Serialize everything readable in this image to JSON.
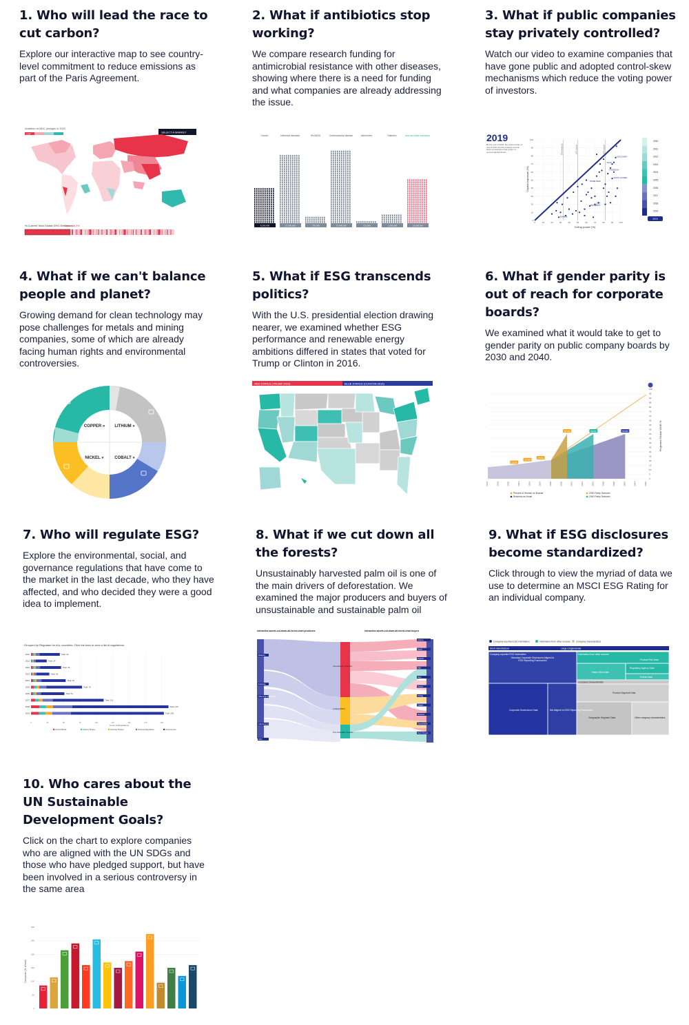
{
  "cards": [
    {
      "title": "1. Who will lead the race to cut carbon?",
      "text": "Explore our interactive map to see country-level commitment to reduce emissions as part of the Paris Agreement."
    },
    {
      "title": "2. What if antibiotics stop working?",
      "text": "We compare research funding for antimicrobial resistance with other diseases, showing where there is a need for funding and what companies are already addressing the issue."
    },
    {
      "title": "3. What if public companies stay privately controlled?",
      "text": "Watch our video to examine companies that have gone public and adopted control-skew mechanisms which reduce the voting power of investors."
    },
    {
      "title": "4. What if we can't balance people and planet?",
      "text": "Growing demand for clean technology may pose challenges for metals and mining companies, some of which are already facing human rights and environmental controversies."
    },
    {
      "title": "5. What if ESG transcends politics?",
      "text": "With the U.S. presidential election drawing nearer, we examined whether ESG performance and renewable energy ambitions differed in states that voted for Trump or Clinton in 2016."
    },
    {
      "title": "6. What if gender parity is out of reach for corporate boards?",
      "text": "We examined what it would take to get to gender parity on public company boards by 2030 and 2040."
    },
    {
      "title": "7. Who will regulate ESG?",
      "text": "Explore the environmental, social, and governance regulations that have come to the market in the last decade, who they have affected, and who decided they were a good idea to implement."
    },
    {
      "title": "8. What if we cut down all the forests?",
      "text": "Unsustainably harvested palm oil is one of the main drivers of deforestation. We examined the major producers and buyers of unsustainable and sustainable palm oil"
    },
    {
      "title": "9. What if ESG disclosures become standardized?",
      "text": "Click through to view the myriad of data we use to determine an MSCI ESG Rating for an individual company."
    },
    {
      "title": "10. Who cares about the UN Sustainable Development Goals?",
      "text": "Click on the chart to explore companies who are aligned with the UN SDGs and those who have pledged support, but have been involved in a serious controversy in the same area"
    }
  ],
  "thumb1": {
    "header_left": "Ambition of NDC pledges in 2022",
    "button": "SELECT A MARKET",
    "legend_low": "LOW",
    "legend_high": "HIGH",
    "footer": "% Current Total Global GHG Emissions:",
    "footer_value": "China 26.3%"
  },
  "thumb2": {
    "categories": [
      "Cancer",
      "Infectious diseases",
      "HIV/AIDS",
      "Cardiovascular disease",
      "Alzheimers",
      "Diabetes",
      "Anti-microbial resistance"
    ],
    "labels": [
      "8,200,000",
      "17,000,000",
      "770,000",
      "17,900,000",
      "121,000",
      "1,500,000",
      "10,000,000"
    ]
  },
  "thumb3": {
    "year": "2019",
    "caption": "By the end of 2019, the total number of recent IPOs that the tracked control-skew mechanisms had grown to unprecedented levels",
    "xlabel": "Voting power (%)",
    "ylabel": "Capital exposure (%)",
    "years": [
      "2010",
      "2011",
      "2012",
      "2013",
      "2014",
      "2015",
      "2016",
      "2017",
      "2018",
      "2019"
    ],
    "ticks": [
      "0",
      "10",
      "20",
      "30",
      "40",
      "50",
      "60",
      "70",
      "80",
      "90",
      "100"
    ],
    "ref_lines": [
      "10% threshold",
      "25% control",
      "50% control"
    ],
    "points": [
      "FACEBOOK",
      "BUMBLE",
      "RALPH LAUREN",
      "SNAP",
      "DISCOVERY",
      "PINTEREST",
      "LYFT",
      "TRADE DESK"
    ]
  },
  "thumb4": {
    "labels": [
      "COPPER »",
      "LITHIUM »",
      "NICKEL »",
      "COBALT »"
    ]
  },
  "thumb5": {
    "red_label": "RED STATES (TRUMP 2016)",
    "blue_label": "BLUE STATES (CLINTON 2016)"
  },
  "thumb6": {
    "ylabel": "Projected Global WOB %",
    "years": [
      "2016",
      "2018",
      "2020",
      "2022",
      "2024",
      "2026",
      "2028",
      "2030",
      "2032",
      "2034",
      "2036",
      "2038",
      "2040",
      "2042",
      "2044",
      "2046"
    ],
    "ticks": [
      "100",
      "95",
      "90",
      "85",
      "80",
      "75",
      "70",
      "65",
      "60",
      "55",
      "50",
      "45",
      "40",
      "35",
      "30",
      "25",
      "20",
      "15",
      "10",
      "5",
      "0"
    ],
    "badges": [
      "15.0%",
      "17.9%",
      "20.0%",
      "50.0%",
      "50.0%",
      "50.0%"
    ],
    "legend": [
      "Percent of Women on Boards",
      "2030 Parity Scenario",
      "Business as Usual",
      "2040 Parity Scenario"
    ]
  },
  "thumb7": {
    "title": "Grouped by Regulator for ALL countries. Click the bars to view a list of regulations.",
    "years": [
      "2010",
      "2011",
      "2012",
      "2013",
      "2014",
      "2015",
      "2016",
      "2017",
      "2018",
      "2019"
    ],
    "totals": [
      "Total: 44",
      "Total: 24",
      "Total: 46",
      "Total: 28",
      "Total: 53",
      "Total: 78",
      "Total: 51",
      "Total: 111",
      "Total: 210",
      "Total: 203"
    ],
    "values": [
      44,
      24,
      46,
      28,
      53,
      78,
      51,
      111,
      210,
      203
    ],
    "xlabel": "Count of Regulations",
    "legend": [
      "Central Banks",
      "Industry Bodies",
      "Voluntary Bodies",
      "Financial Regulators",
      "Governments"
    ]
  },
  "thumb8": {
    "left_title": "interactive-assets.cut-down-all-forest-chart.producers",
    "right_title": "interactive-assets.cut-down-all-forest-chart.buyers",
    "left_nodes": [
      "Malaysia",
      "Indonesia",
      "Other Asian Plantations",
      "Latin America",
      "Other"
    ],
    "mid_nodes": [
      "Unsustainable / Unverified",
      "Certified (RSPO)",
      "Fully sustainable / traceable"
    ],
    "right_nodes": [
      "Unilever",
      "Nestlé",
      "PepsiCo",
      "P&G",
      "Mars",
      "Ferrero",
      "Kellogg",
      "Colgate",
      "Mondelez",
      "General Mills",
      "Rest of buyers"
    ]
  },
  "thumb9": {
    "legend": [
      "Company-reported ESG information",
      "Information from other sources",
      "Company characteristics"
    ],
    "header_left": "Short manufacturer",
    "header_right": "Large conglomerate",
    "boxes": [
      "Company reported ESG information",
      "Voluntary Corporate Disclosures Aligned to ESG Reporting Frameworks",
      "Corporate Governance Data",
      "Not Aligned to ESG Reporting Frameworks",
      "Information from other sources",
      "Product Risk Data",
      "Macro Risk Data",
      "Regulatory Agency Data",
      "Events Data",
      "Company Characteristics",
      "Product Segment Data",
      "Geographic Segment Data",
      "Other company characteristics"
    ]
  },
  "thumb10": {
    "ylabel": "Companies (% of total)",
    "ticks": [
      "300",
      "250",
      "200",
      "150",
      "100",
      "50",
      "0"
    ],
    "values": [
      85,
      115,
      215,
      240,
      160,
      255,
      170,
      150,
      175,
      210,
      275,
      95,
      150,
      120,
      160
    ],
    "colors": [
      "#e5243b",
      "#dda63a",
      "#4c9f38",
      "#c5192d",
      "#ff3a21",
      "#26bde2",
      "#fcc30b",
      "#a21942",
      "#fd6925",
      "#dd1367",
      "#fd9d24",
      "#bf8b2e",
      "#3f7e44",
      "#0a97d9",
      "#19486a"
    ]
  }
}
